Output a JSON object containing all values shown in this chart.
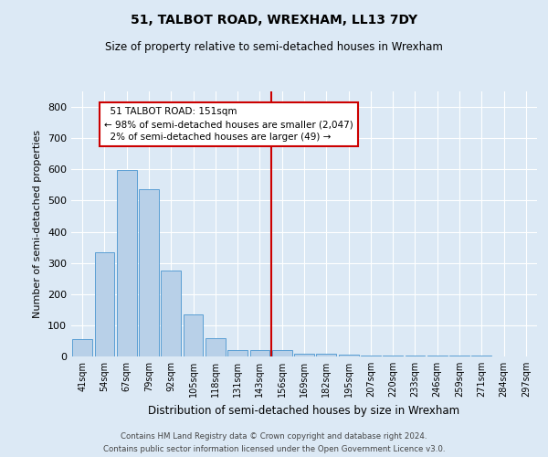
{
  "title": "51, TALBOT ROAD, WREXHAM, LL13 7DY",
  "subtitle": "Size of property relative to semi-detached houses in Wrexham",
  "xlabel": "Distribution of semi-detached houses by size in Wrexham",
  "ylabel": "Number of semi-detached properties",
  "property_label": "51 TALBOT ROAD: 151sqm",
  "smaller_pct": "98% of semi-detached houses are smaller (2,047)",
  "larger_pct": "2% of semi-detached houses are larger (49)",
  "bar_labels": [
    "41sqm",
    "54sqm",
    "67sqm",
    "79sqm",
    "92sqm",
    "105sqm",
    "118sqm",
    "131sqm",
    "143sqm",
    "156sqm",
    "169sqm",
    "182sqm",
    "195sqm",
    "207sqm",
    "220sqm",
    "233sqm",
    "246sqm",
    "259sqm",
    "271sqm",
    "284sqm",
    "297sqm"
  ],
  "bar_values": [
    55,
    335,
    597,
    537,
    275,
    135,
    60,
    20,
    20,
    20,
    10,
    8,
    5,
    3,
    3,
    3,
    2,
    2,
    2,
    1,
    1
  ],
  "bar_color": "#b8d0e8",
  "bar_edge_color": "#5a9fd4",
  "property_line_color": "#cc0000",
  "annotation_box_color": "#cc0000",
  "background_color": "#dce9f5",
  "plot_bg_color": "#dce9f5",
  "grid_color": "#ffffff",
  "ylim": [
    0,
    850
  ],
  "yticks": [
    0,
    100,
    200,
    300,
    400,
    500,
    600,
    700,
    800
  ],
  "footnote1": "Contains HM Land Registry data © Crown copyright and database right 2024.",
  "footnote2": "Contains public sector information licensed under the Open Government Licence v3.0."
}
